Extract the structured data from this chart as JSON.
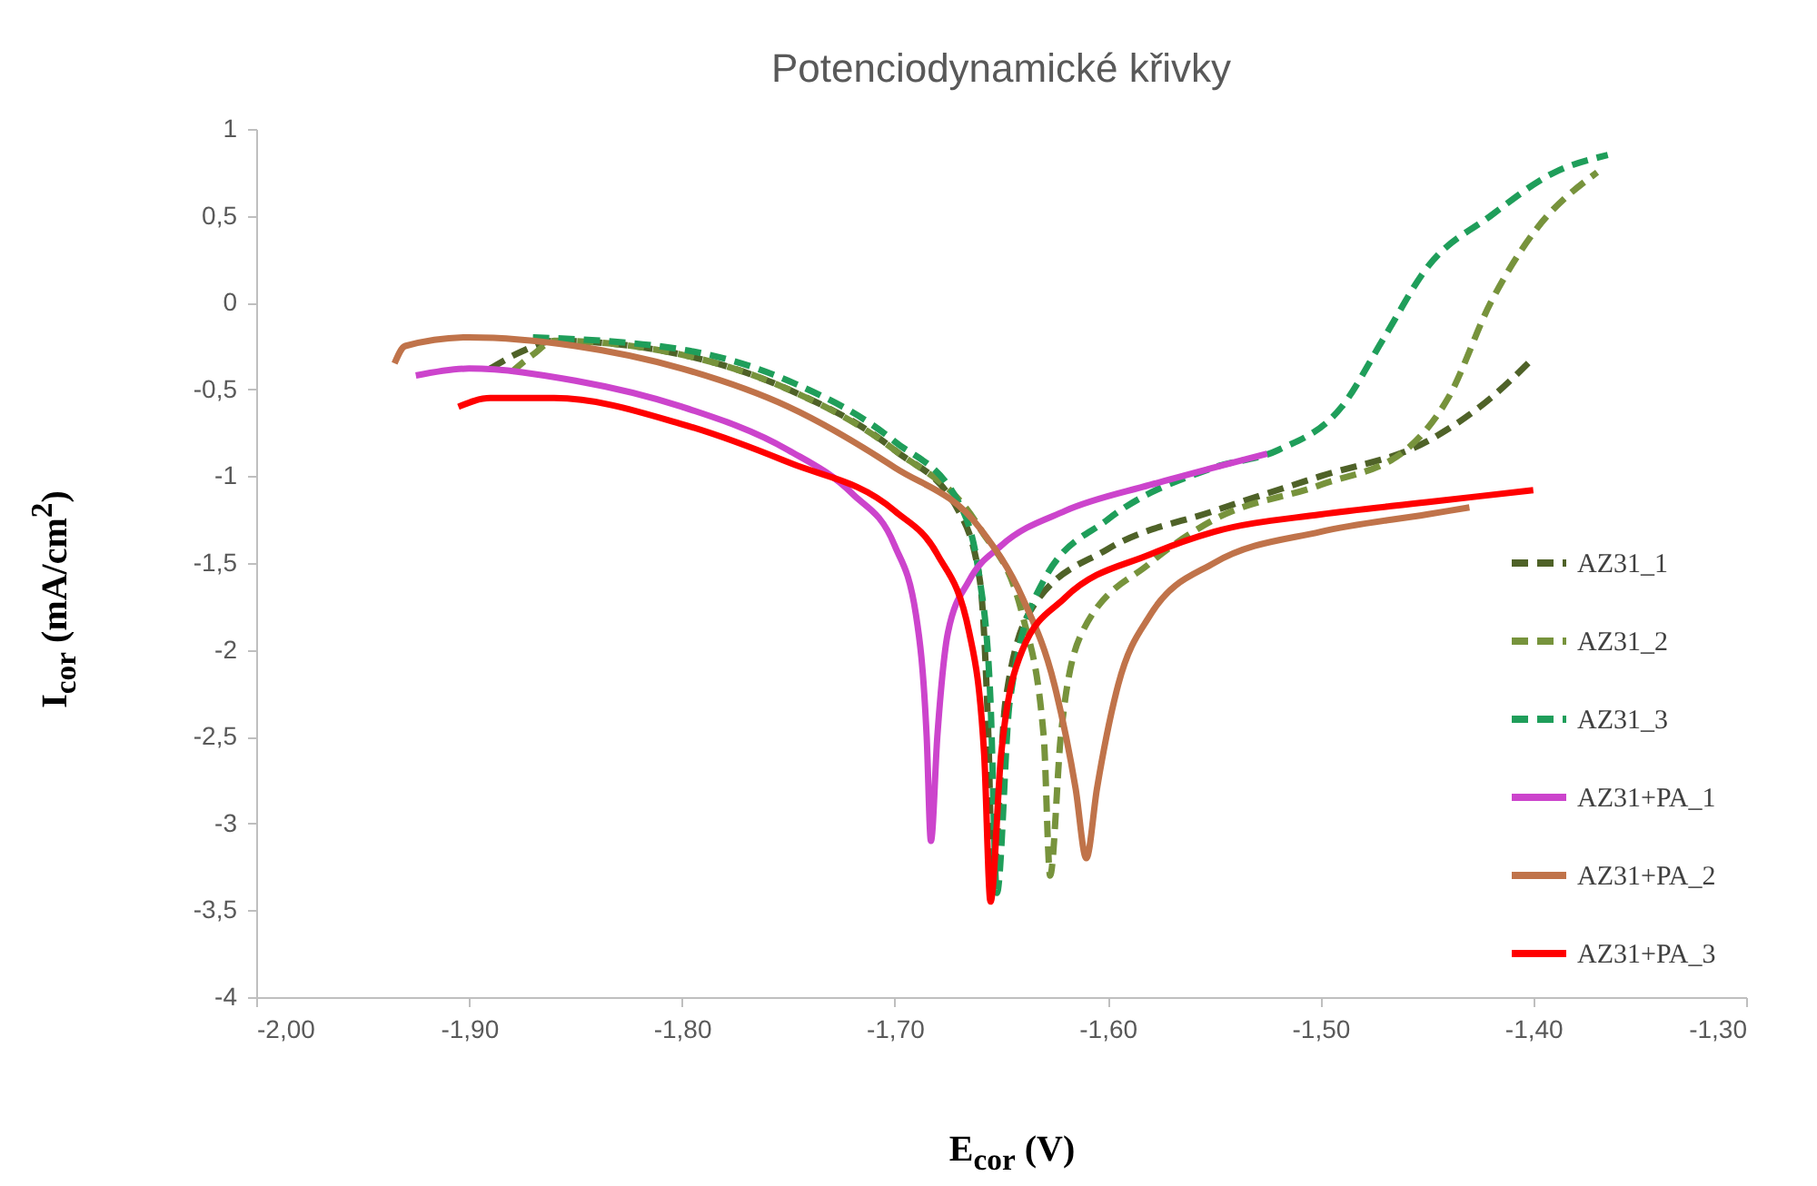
{
  "chart_data": {
    "type": "line",
    "title": "Potenciodynamické křivky",
    "xlabel": "E$_{cor}$ (V)",
    "ylabel": "I$_{cor}$ (mA/cm$^{2}$)",
    "xlim": [
      -2.0,
      -1.3
    ],
    "xticks": [
      {
        "value": -2.0,
        "label": "-2,00"
      },
      {
        "value": -1.9,
        "label": "-1,90"
      },
      {
        "value": -1.8,
        "label": "-1,80"
      },
      {
        "value": -1.7,
        "label": "-1,70"
      },
      {
        "value": -1.6,
        "label": "-1,60"
      },
      {
        "value": -1.5,
        "label": "-1,50"
      },
      {
        "value": -1.4,
        "label": "-1,40"
      },
      {
        "value": -1.3,
        "label": "-1,30"
      }
    ],
    "ylim": [
      -4,
      1
    ],
    "yticks": [
      -4,
      {
        "value": -3.5,
        "label": "-3,5"
      },
      -3,
      {
        "value": -2.5,
        "label": "-2,5"
      },
      -2,
      {
        "value": -1.5,
        "label": "-1,5"
      },
      -1,
      {
        "value": -0.5,
        "label": "-0,5"
      },
      0,
      {
        "value": 0.5,
        "label": "0,5"
      },
      1
    ],
    "grid": false,
    "legend": "bottom right",
    "series": [
      {
        "name": "AZ31_1",
        "color": "#4f6228",
        "line_style": "dashed",
        "x": [
          -1.89,
          -1.875,
          -1.86,
          -1.8,
          -1.75,
          -1.7,
          -1.67,
          -1.66,
          -1.656,
          -1.654,
          -1.648,
          -1.635,
          -1.6,
          -1.55,
          -1.5,
          -1.45,
          -1.42,
          -1.4
        ],
        "values": [
          -0.38,
          -0.28,
          -0.22,
          -0.3,
          -0.5,
          -0.85,
          -1.2,
          -1.6,
          -2.5,
          -3.35,
          -2.3,
          -1.75,
          -1.42,
          -1.2,
          -1.0,
          -0.8,
          -0.55,
          -0.32
        ]
      },
      {
        "name": "AZ31_2",
        "color": "#77933c",
        "line_style": "dashed",
        "x": [
          -1.88,
          -1.87,
          -1.86,
          -1.8,
          -1.75,
          -1.7,
          -1.66,
          -1.64,
          -1.63,
          -1.627,
          -1.622,
          -1.612,
          -1.58,
          -1.55,
          -1.5,
          -1.46,
          -1.44,
          -1.42,
          -1.4,
          -1.37
        ],
        "values": [
          -0.4,
          -0.3,
          -0.22,
          -0.3,
          -0.5,
          -0.85,
          -1.3,
          -1.8,
          -2.5,
          -3.3,
          -2.5,
          -1.9,
          -1.5,
          -1.25,
          -1.05,
          -0.85,
          -0.55,
          0.0,
          0.4,
          0.75
        ]
      },
      {
        "name": "AZ31_3",
        "color": "#1f9e5a",
        "line_style": "dashed",
        "x": [
          -1.87,
          -1.8,
          -1.75,
          -1.7,
          -1.67,
          -1.66,
          -1.655,
          -1.652,
          -1.646,
          -1.63,
          -1.6,
          -1.55,
          -1.52,
          -1.49,
          -1.47,
          -1.45,
          -1.42,
          -1.39,
          -1.365
        ],
        "values": [
          -0.2,
          -0.27,
          -0.45,
          -0.8,
          -1.15,
          -1.6,
          -2.3,
          -3.4,
          -2.3,
          -1.6,
          -1.25,
          -0.95,
          -0.85,
          -0.6,
          -0.2,
          0.2,
          0.5,
          0.75,
          0.85
        ]
      },
      {
        "name": "AZ31+PA_1",
        "color": "#cc44cc",
        "line_style": "solid",
        "x": [
          -1.925,
          -1.9,
          -1.85,
          -1.8,
          -1.75,
          -1.72,
          -1.7,
          -1.69,
          -1.685,
          -1.683,
          -1.68,
          -1.675,
          -1.665,
          -1.65,
          -1.62,
          -1.58,
          -1.55,
          -1.525
        ],
        "values": [
          -0.42,
          -0.38,
          -0.45,
          -0.6,
          -0.85,
          -1.1,
          -1.4,
          -1.8,
          -2.5,
          -3.1,
          -2.5,
          -1.9,
          -1.6,
          -1.4,
          -1.2,
          -1.05,
          -0.95,
          -0.87
        ]
      },
      {
        "name": "AZ31+PA_2",
        "color": "#c0734a",
        "line_style": "solid",
        "x": [
          -1.935,
          -1.93,
          -1.9,
          -1.85,
          -1.8,
          -1.75,
          -1.7,
          -1.66,
          -1.64,
          -1.625,
          -1.615,
          -1.61,
          -1.605,
          -1.595,
          -1.58,
          -1.55,
          -1.5,
          -1.45,
          -1.43
        ],
        "values": [
          -0.35,
          -0.25,
          -0.2,
          -0.25,
          -0.38,
          -0.6,
          -0.95,
          -1.3,
          -1.7,
          -2.2,
          -2.8,
          -3.2,
          -2.8,
          -2.2,
          -1.8,
          -1.5,
          -1.32,
          -1.22,
          -1.18
        ]
      },
      {
        "name": "AZ31+PA_3",
        "color": "#ff0000",
        "line_style": "solid",
        "x": [
          -1.905,
          -1.89,
          -1.86,
          -1.8,
          -1.75,
          -1.7,
          -1.68,
          -1.665,
          -1.658,
          -1.655,
          -1.65,
          -1.64,
          -1.62,
          -1.58,
          -1.55,
          -1.5,
          -1.45,
          -1.4
        ],
        "values": [
          -0.6,
          -0.55,
          -0.55,
          -0.7,
          -0.92,
          -1.2,
          -1.45,
          -1.9,
          -2.6,
          -3.45,
          -2.6,
          -2.0,
          -1.7,
          -1.45,
          -1.32,
          -1.22,
          -1.15,
          -1.08
        ]
      }
    ]
  }
}
